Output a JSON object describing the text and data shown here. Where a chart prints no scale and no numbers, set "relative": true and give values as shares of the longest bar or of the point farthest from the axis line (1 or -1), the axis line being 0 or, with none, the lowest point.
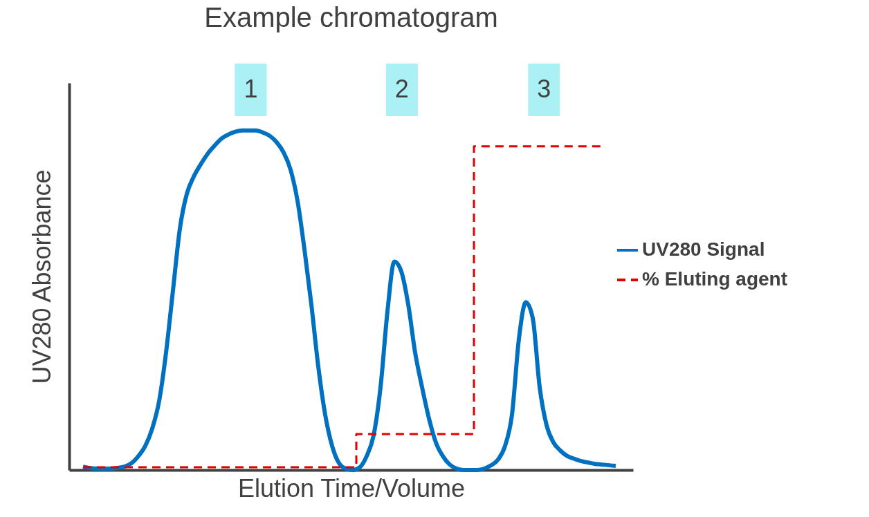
{
  "chart_data": {
    "type": "line",
    "title": "Example chromatogram",
    "xlabel": "Elution Time/Volume",
    "ylabel": "UV280 Absorbance",
    "relative": true,
    "grid": false,
    "legend": "right",
    "marker": "none",
    "annotations": [
      "1",
      "2",
      "3"
    ],
    "categories": [
      null,
      null,
      null,
      null,
      null,
      null,
      null,
      null,
      null,
      null,
      null,
      null,
      null,
      null,
      null,
      null,
      null,
      null,
      null,
      null,
      null,
      null,
      null,
      null,
      null,
      null,
      null,
      null,
      null,
      null,
      null,
      null,
      null,
      null,
      null,
      null,
      null,
      null,
      null,
      null,
      null,
      null,
      null,
      null,
      null,
      null,
      null,
      null,
      null,
      null,
      null,
      null,
      null,
      null,
      null,
      null,
      null,
      null,
      null,
      null,
      null,
      null,
      null,
      null,
      null,
      null,
      null,
      null,
      null,
      null,
      null,
      null,
      null,
      null,
      null,
      null,
      null,
      null
    ],
    "series": [
      {
        "name": "UV280 Signal",
        "color": "#0070c0",
        "line_style": "solid",
        "values": [
          0.01,
          0.006,
          0.004,
          0.004,
          0.004,
          0.006,
          0.01,
          0.02,
          0.041,
          0.071,
          0.122,
          0.203,
          0.346,
          0.529,
          0.711,
          0.813,
          0.864,
          0.9,
          0.931,
          0.955,
          0.976,
          0.988,
          0.996,
          1.0,
          1.0,
          1.0,
          0.994,
          0.984,
          0.965,
          0.935,
          0.884,
          0.793,
          0.65,
          0.488,
          0.305,
          0.163,
          0.071,
          0.02,
          0.004,
          0.0,
          0.008,
          0.041,
          0.102,
          0.244,
          0.467,
          0.614,
          0.585,
          0.488,
          0.346,
          0.244,
          0.152,
          0.081,
          0.041,
          0.016,
          0.004,
          0.0,
          0.0,
          0.0,
          0.004,
          0.014,
          0.031,
          0.071,
          0.163,
          0.386,
          0.494,
          0.447,
          0.244,
          0.132,
          0.081,
          0.057,
          0.041,
          0.033,
          0.026,
          0.022,
          0.018,
          0.016,
          0.014,
          0.012
        ]
      },
      {
        "name": "% Eluting agent",
        "color": "#e00000",
        "line_style": "dashed",
        "type": "step",
        "values": [
          0.008,
          0.008,
          0.008,
          0.008,
          0.008,
          0.008,
          0.008,
          0.008,
          0.008,
          0.008,
          0.008,
          0.008,
          0.008,
          0.008,
          0.008,
          0.008,
          0.008,
          0.008,
          0.008,
          0.008,
          0.008,
          0.008,
          0.008,
          0.008,
          0.008,
          0.008,
          0.008,
          0.008,
          0.008,
          0.008,
          0.008,
          0.008,
          0.008,
          0.008,
          0.008,
          0.008,
          0.008,
          0.008,
          0.008,
          0.008,
          0.106,
          0.106,
          0.106,
          0.106,
          0.106,
          0.106,
          0.106,
          0.106,
          0.106,
          0.106,
          0.106,
          0.106,
          0.106,
          0.106,
          0.106,
          0.106,
          0.106,
          0.953,
          0.953,
          0.953,
          0.953,
          0.953,
          0.953,
          0.953,
          0.953,
          0.953,
          0.953,
          0.953,
          0.953,
          0.953,
          0.953,
          0.953,
          0.953,
          0.953,
          0.953,
          0.953,
          null,
          null
        ]
      }
    ]
  }
}
